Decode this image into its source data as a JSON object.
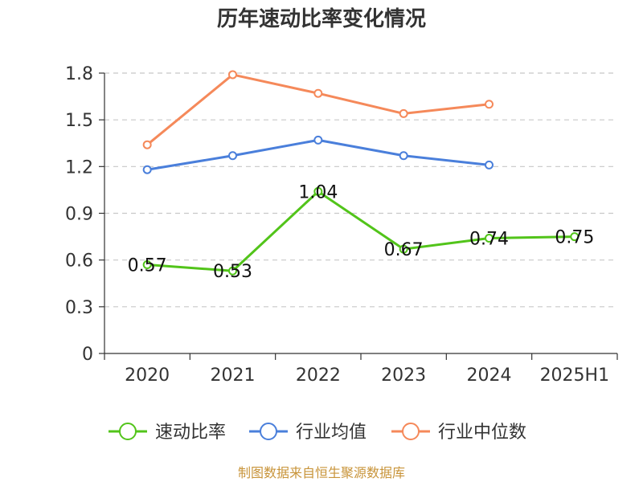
{
  "source_text": "制图数据来自恒生聚源数据库",
  "chart_data": {
    "type": "line",
    "title": "历年速动比率变化情况",
    "categories": [
      "2020",
      "2021",
      "2022",
      "2023",
      "2024",
      "2025H1"
    ],
    "ylim": [
      0,
      1.8
    ],
    "yticks": [
      "0",
      "0.3",
      "0.6",
      "0.9",
      "1.2",
      "1.5",
      "1.8"
    ],
    "grid": true,
    "legend_position": "bottom",
    "series": [
      {
        "name": "速动比率",
        "color": "#52c41a",
        "values": [
          0.57,
          0.53,
          1.04,
          0.67,
          0.74,
          0.75
        ],
        "labels": [
          "0.57",
          "0.53",
          "1.04",
          "0.67",
          "0.74",
          "0.75"
        ]
      },
      {
        "name": "行业均值",
        "color": "#4a7fdb",
        "values": [
          1.18,
          1.27,
          1.37,
          1.27,
          1.21,
          null
        ]
      },
      {
        "name": "行业中位数",
        "color": "#f5895a",
        "values": [
          1.34,
          1.79,
          1.67,
          1.54,
          1.6,
          null
        ]
      }
    ]
  }
}
